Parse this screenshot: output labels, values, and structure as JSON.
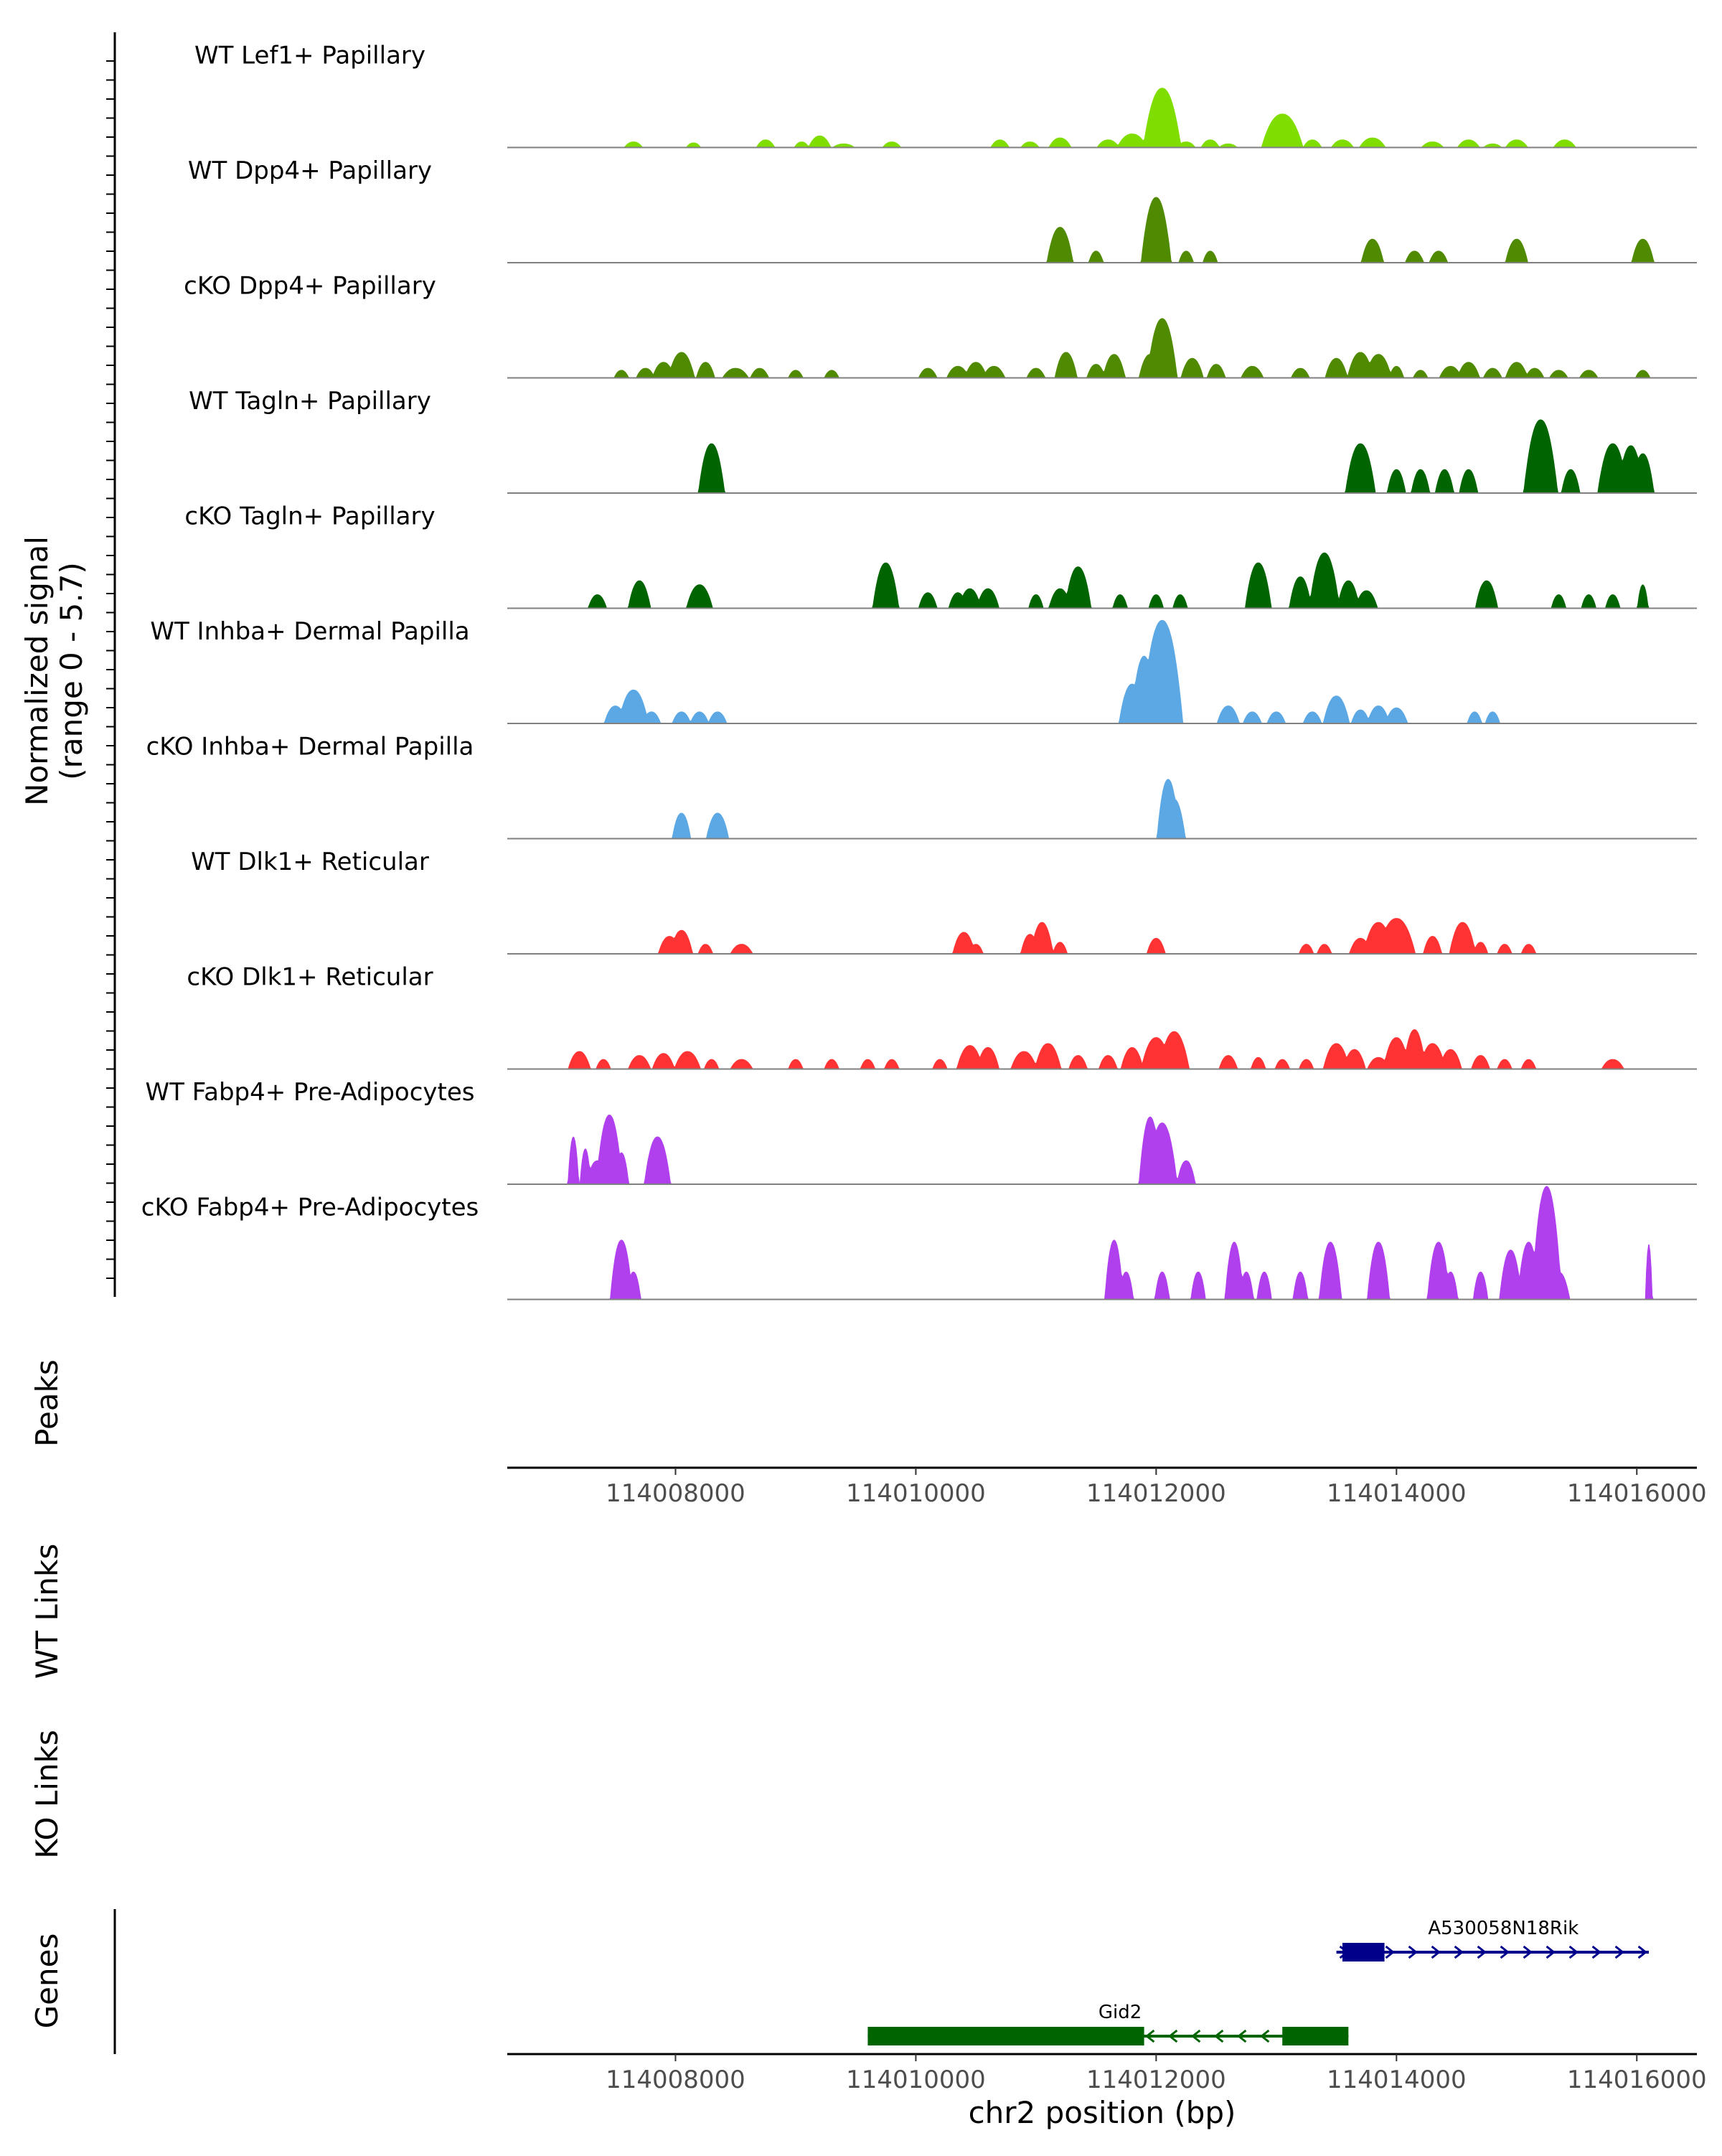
{
  "chart_data": {
    "type": "area",
    "title": "",
    "region": {
      "chrom": "chr2",
      "start": 114006600,
      "end": 114016500
    },
    "y_axis_label_line1": "Normalized signal",
    "y_axis_label_line2": "(range 0 - 5.7)",
    "y_range": [
      0,
      5.7
    ],
    "xlabel": "chr2 position (bp)",
    "x_ticks": [
      114008000,
      114010000,
      114012000,
      114014000,
      114016000
    ],
    "x_tick_labels": [
      "114008000",
      "114010000",
      "114012000",
      "114014000",
      "114016000"
    ],
    "tracks": [
      {
        "name": "WT Lef1+ Papillary",
        "color": "#7FDD00",
        "peaks": [
          [
            114007650,
            0.3,
            50
          ],
          [
            114008150,
            0.25,
            40
          ],
          [
            114008750,
            0.4,
            50
          ],
          [
            114009050,
            0.3,
            40
          ],
          [
            114009200,
            0.6,
            60
          ],
          [
            114009400,
            0.2,
            60
          ],
          [
            114009800,
            0.3,
            50
          ],
          [
            114010700,
            0.4,
            50
          ],
          [
            114010950,
            0.3,
            50
          ],
          [
            114011200,
            0.5,
            60
          ],
          [
            114011600,
            0.4,
            60
          ],
          [
            114011800,
            0.7,
            80
          ],
          [
            114012050,
            3.0,
            100
          ],
          [
            114012250,
            0.3,
            50
          ],
          [
            114012450,
            0.4,
            50
          ],
          [
            114012600,
            0.2,
            50
          ],
          [
            114013050,
            1.7,
            110
          ],
          [
            114013300,
            0.4,
            50
          ],
          [
            114013550,
            0.4,
            60
          ],
          [
            114013800,
            0.5,
            70
          ],
          [
            114014300,
            0.3,
            60
          ],
          [
            114014600,
            0.4,
            60
          ],
          [
            114014800,
            0.2,
            50
          ],
          [
            114015000,
            0.4,
            60
          ],
          [
            114015400,
            0.4,
            60
          ]
        ]
      },
      {
        "name": "WT Dpp4+ Papillary",
        "color": "#4F8A00",
        "peaks": [
          [
            114011200,
            1.8,
            70
          ],
          [
            114011500,
            0.6,
            40
          ],
          [
            114012000,
            3.3,
            80
          ],
          [
            114012250,
            0.6,
            40
          ],
          [
            114012450,
            0.6,
            40
          ],
          [
            114013800,
            1.2,
            60
          ],
          [
            114014150,
            0.6,
            50
          ],
          [
            114014350,
            0.6,
            50
          ],
          [
            114015000,
            1.2,
            60
          ],
          [
            114016050,
            1.2,
            60
          ]
        ]
      },
      {
        "name": "cKO Dpp4+ Papillary",
        "color": "#4F8A00",
        "peaks": [
          [
            114007550,
            0.4,
            40
          ],
          [
            114007750,
            0.5,
            50
          ],
          [
            114007900,
            0.8,
            60
          ],
          [
            114008050,
            1.3,
            70
          ],
          [
            114008250,
            0.8,
            50
          ],
          [
            114008500,
            0.5,
            70
          ],
          [
            114008700,
            0.5,
            50
          ],
          [
            114009000,
            0.4,
            40
          ],
          [
            114009300,
            0.4,
            40
          ],
          [
            114010100,
            0.5,
            50
          ],
          [
            114010350,
            0.6,
            60
          ],
          [
            114010500,
            0.8,
            60
          ],
          [
            114010650,
            0.6,
            60
          ],
          [
            114011000,
            0.5,
            50
          ],
          [
            114011250,
            1.3,
            60
          ],
          [
            114011500,
            0.7,
            50
          ],
          [
            114011650,
            1.2,
            60
          ],
          [
            114011950,
            1.2,
            60
          ],
          [
            114012050,
            3.0,
            80
          ],
          [
            114012300,
            1.0,
            60
          ],
          [
            114012500,
            0.7,
            50
          ],
          [
            114012800,
            0.6,
            60
          ],
          [
            114013200,
            0.5,
            50
          ],
          [
            114013500,
            1.0,
            60
          ],
          [
            114013700,
            1.3,
            70
          ],
          [
            114013850,
            1.2,
            70
          ],
          [
            114014000,
            0.6,
            40
          ],
          [
            114014200,
            0.4,
            40
          ],
          [
            114014450,
            0.6,
            60
          ],
          [
            114014600,
            0.8,
            60
          ],
          [
            114014800,
            0.5,
            50
          ],
          [
            114015000,
            0.8,
            60
          ],
          [
            114015150,
            0.5,
            50
          ],
          [
            114015350,
            0.4,
            50
          ],
          [
            114015600,
            0.4,
            50
          ],
          [
            114016050,
            0.4,
            40
          ]
        ]
      },
      {
        "name": "WT Tagln+ Papillary",
        "color": "#006400",
        "peaks": [
          [
            114008300,
            2.5,
            70
          ],
          [
            114013700,
            2.5,
            80
          ],
          [
            114014000,
            1.2,
            50
          ],
          [
            114014200,
            1.2,
            50
          ],
          [
            114014400,
            1.2,
            50
          ],
          [
            114014600,
            1.2,
            50
          ],
          [
            114015200,
            3.7,
            90
          ],
          [
            114015450,
            1.2,
            50
          ],
          [
            114015800,
            2.5,
            80
          ],
          [
            114015950,
            2.4,
            70
          ],
          [
            114016050,
            2.0,
            60
          ]
        ]
      },
      {
        "name": "cKO Tagln+ Papillary",
        "color": "#006400",
        "peaks": [
          [
            114007350,
            0.7,
            50
          ],
          [
            114007700,
            1.4,
            60
          ],
          [
            114008200,
            1.2,
            70
          ],
          [
            114009750,
            2.3,
            70
          ],
          [
            114010100,
            0.8,
            50
          ],
          [
            114010350,
            0.8,
            50
          ],
          [
            114010450,
            1.0,
            60
          ],
          [
            114010600,
            1.0,
            60
          ],
          [
            114011000,
            0.7,
            40
          ],
          [
            114011200,
            1.0,
            60
          ],
          [
            114011350,
            2.1,
            70
          ],
          [
            114011700,
            0.7,
            40
          ],
          [
            114012000,
            0.7,
            40
          ],
          [
            114012200,
            0.7,
            40
          ],
          [
            114012850,
            2.3,
            70
          ],
          [
            114013200,
            1.6,
            60
          ],
          [
            114013400,
            2.8,
            80
          ],
          [
            114013600,
            1.4,
            60
          ],
          [
            114013750,
            0.9,
            60
          ],
          [
            114014750,
            1.4,
            60
          ],
          [
            114015350,
            0.7,
            40
          ],
          [
            114015600,
            0.7,
            40
          ],
          [
            114015800,
            0.7,
            40
          ],
          [
            114016050,
            1.2,
            30
          ]
        ]
      },
      {
        "name": "WT Inhba+ Dermal Papilla",
        "color": "#5BA8E5",
        "peaks": [
          [
            114007500,
            0.9,
            60
          ],
          [
            114007650,
            1.7,
            80
          ],
          [
            114007800,
            0.6,
            50
          ],
          [
            114008050,
            0.6,
            50
          ],
          [
            114008200,
            0.6,
            50
          ],
          [
            114008350,
            0.6,
            50
          ],
          [
            114011800,
            2.0,
            70
          ],
          [
            114011900,
            3.4,
            70
          ],
          [
            114012050,
            5.2,
            110
          ],
          [
            114012600,
            0.9,
            60
          ],
          [
            114012800,
            0.6,
            50
          ],
          [
            114013000,
            0.6,
            50
          ],
          [
            114013300,
            0.6,
            50
          ],
          [
            114013500,
            1.4,
            70
          ],
          [
            114013700,
            0.7,
            50
          ],
          [
            114013850,
            0.9,
            60
          ],
          [
            114014000,
            0.8,
            60
          ],
          [
            114014650,
            0.6,
            40
          ],
          [
            114014800,
            0.6,
            40
          ]
        ]
      },
      {
        "name": "cKO Inhba+ Dermal Papilla",
        "color": "#5BA8E5",
        "peaks": [
          [
            114008050,
            1.3,
            50
          ],
          [
            114008350,
            1.3,
            60
          ],
          [
            114012100,
            3.0,
            60
          ],
          [
            114012150,
            2.0,
            60
          ]
        ]
      },
      {
        "name": "WT Dlk1+ Reticular",
        "color": "#FF3333",
        "peaks": [
          [
            114007950,
            0.9,
            60
          ],
          [
            114008050,
            1.2,
            60
          ],
          [
            114008250,
            0.5,
            40
          ],
          [
            114008550,
            0.5,
            60
          ],
          [
            114010400,
            1.1,
            60
          ],
          [
            114010500,
            0.5,
            40
          ],
          [
            114010950,
            1.0,
            50
          ],
          [
            114011050,
            1.6,
            60
          ],
          [
            114011200,
            0.6,
            40
          ],
          [
            114012000,
            0.8,
            50
          ],
          [
            114013250,
            0.5,
            40
          ],
          [
            114013400,
            0.5,
            40
          ],
          [
            114013700,
            0.8,
            60
          ],
          [
            114013850,
            1.6,
            80
          ],
          [
            114014000,
            1.8,
            100
          ],
          [
            114014300,
            0.9,
            50
          ],
          [
            114014550,
            1.6,
            70
          ],
          [
            114014700,
            0.6,
            40
          ],
          [
            114014900,
            0.5,
            40
          ],
          [
            114015100,
            0.5,
            40
          ]
        ]
      },
      {
        "name": "cKO Dlk1+ Reticular",
        "color": "#FF3333",
        "peaks": [
          [
            114007200,
            0.9,
            60
          ],
          [
            114007400,
            0.5,
            40
          ],
          [
            114007700,
            0.7,
            60
          ],
          [
            114007900,
            0.8,
            60
          ],
          [
            114008100,
            0.9,
            70
          ],
          [
            114008300,
            0.5,
            40
          ],
          [
            114008550,
            0.5,
            60
          ],
          [
            114009000,
            0.5,
            40
          ],
          [
            114009300,
            0.5,
            40
          ],
          [
            114009600,
            0.5,
            40
          ],
          [
            114009800,
            0.5,
            40
          ],
          [
            114010200,
            0.5,
            40
          ],
          [
            114010450,
            1.2,
            70
          ],
          [
            114010600,
            1.1,
            60
          ],
          [
            114010900,
            0.9,
            70
          ],
          [
            114011100,
            1.3,
            70
          ],
          [
            114011350,
            0.7,
            50
          ],
          [
            114011600,
            0.7,
            50
          ],
          [
            114011800,
            1.1,
            60
          ],
          [
            114012000,
            1.6,
            80
          ],
          [
            114012150,
            1.9,
            80
          ],
          [
            114012600,
            0.7,
            50
          ],
          [
            114012850,
            0.6,
            40
          ],
          [
            114013050,
            0.5,
            40
          ],
          [
            114013250,
            0.5,
            40
          ],
          [
            114013500,
            1.3,
            70
          ],
          [
            114013650,
            1.0,
            60
          ],
          [
            114013850,
            0.6,
            60
          ],
          [
            114014000,
            1.6,
            70
          ],
          [
            114014150,
            2.0,
            60
          ],
          [
            114014300,
            1.3,
            70
          ],
          [
            114014450,
            1.0,
            60
          ],
          [
            114014700,
            0.7,
            50
          ],
          [
            114014900,
            0.5,
            40
          ],
          [
            114015100,
            0.5,
            40
          ],
          [
            114015800,
            0.5,
            60
          ]
        ]
      },
      {
        "name": "WT Fabp4+ Pre-Adipocytes",
        "color": "#B040EE",
        "peaks": [
          [
            114007150,
            2.4,
            30
          ],
          [
            114007250,
            1.8,
            30
          ],
          [
            114007350,
            1.2,
            60
          ],
          [
            114007450,
            3.5,
            70
          ],
          [
            114007550,
            1.6,
            40
          ],
          [
            114007850,
            2.4,
            70
          ],
          [
            114011950,
            3.4,
            60
          ],
          [
            114012050,
            3.1,
            80
          ],
          [
            114012250,
            1.2,
            50
          ]
        ]
      },
      {
        "name": "cKO Fabp4+ Pre-Adipocytes",
        "color": "#B040EE",
        "peaks": [
          [
            114007550,
            3.0,
            60
          ],
          [
            114007650,
            1.4,
            40
          ],
          [
            114011650,
            3.0,
            50
          ],
          [
            114011750,
            1.4,
            40
          ],
          [
            114012050,
            1.4,
            40
          ],
          [
            114012350,
            1.4,
            40
          ],
          [
            114012650,
            2.9,
            50
          ],
          [
            114012750,
            1.4,
            40
          ],
          [
            114012900,
            1.4,
            40
          ],
          [
            114013200,
            1.4,
            40
          ],
          [
            114013450,
            2.9,
            60
          ],
          [
            114013850,
            2.9,
            60
          ],
          [
            114014350,
            2.9,
            60
          ],
          [
            114014450,
            1.4,
            40
          ],
          [
            114014700,
            1.4,
            40
          ],
          [
            114014950,
            2.5,
            60
          ],
          [
            114015100,
            2.9,
            60
          ],
          [
            114015250,
            5.7,
            80
          ],
          [
            114015350,
            1.4,
            60
          ],
          [
            114016100,
            2.8,
            20
          ]
        ]
      }
    ],
    "panels": {
      "peaks_label": "Peaks",
      "wt_links_label": "WT Links",
      "ko_links_label": "KO Links",
      "genes_label": "Genes"
    },
    "genes": [
      {
        "name": "A530058N18Rik",
        "strand": "+",
        "start": 114013500,
        "end": 114016100,
        "exons": [
          [
            114013550,
            114013900
          ]
        ],
        "color": "#00008B",
        "row": 1
      },
      {
        "name": "Gid2",
        "strand": "-",
        "start": 114009600,
        "end": 114013600,
        "exons": [
          [
            114009600,
            114011900
          ],
          [
            114013050,
            114013600
          ]
        ],
        "color": "#006400",
        "row": 2
      }
    ]
  }
}
